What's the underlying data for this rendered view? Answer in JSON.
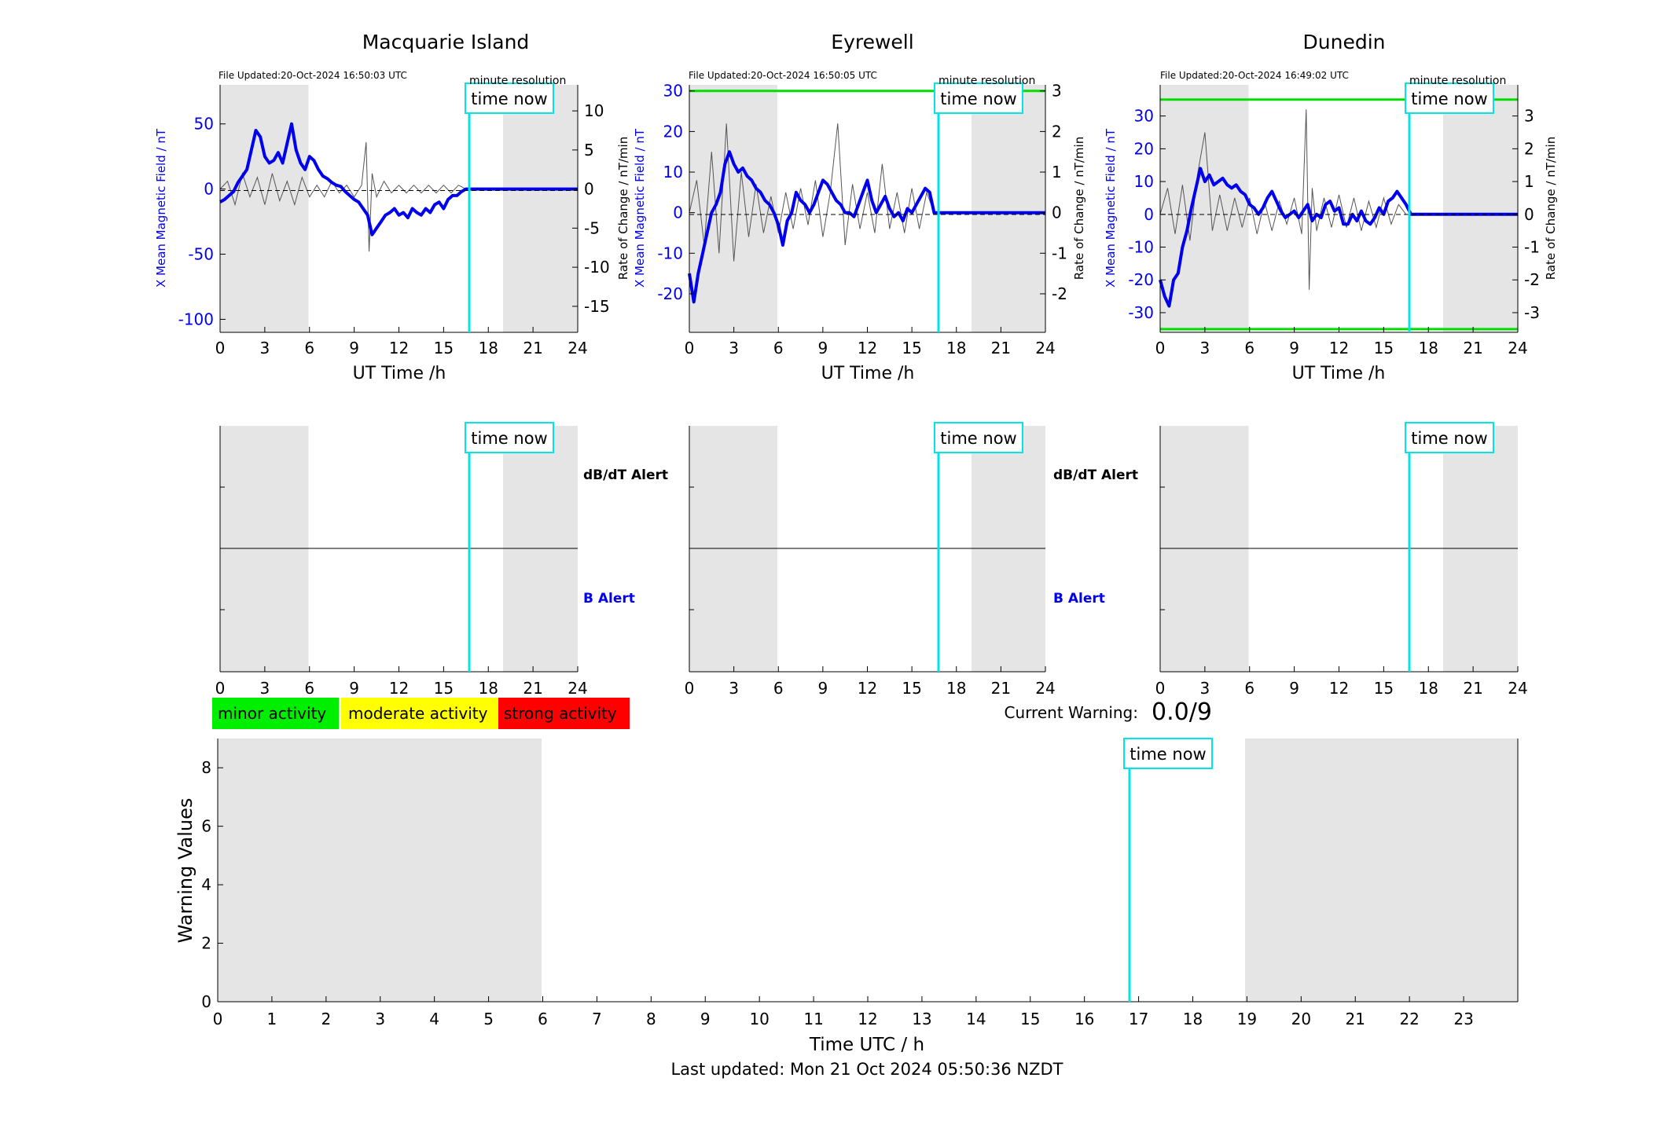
{
  "stations": [
    {
      "name": "Macquarie Island",
      "file_updated": "File Updated:20-Oct-2024 16:50:03 UTC",
      "resolution": "minute resolution",
      "xlabel": "UT Time /h",
      "ylabel_left": "X Mean Magnetic Field / nT",
      "ylabel_right": "Rate of Change / nT/min",
      "time_now_label": "time now",
      "dbdt_label": "dB/dT Alert",
      "b_label": "B Alert"
    },
    {
      "name": "Eyrewell",
      "file_updated": "File Updated:20-Oct-2024 16:50:05 UTC",
      "resolution": "minute resolution",
      "xlabel": "UT Time /h",
      "ylabel_left": "X Mean Magnetic Field / nT",
      "ylabel_right": "Rate of Change / nT/min",
      "time_now_label": "time now",
      "dbdt_label": "dB/dT Alert",
      "b_label": "B Alert"
    },
    {
      "name": "Dunedin",
      "file_updated": "File Updated:20-Oct-2024 16:49:02 UTC",
      "resolution": "minute resolution",
      "xlabel": "UT Time /h",
      "ylabel_left": "X Mean Magnetic Field / nT",
      "ylabel_right": "Rate of Change / nT/min",
      "time_now_label": "time now",
      "dbdt_label": "",
      "b_label": ""
    }
  ],
  "legend": {
    "minor": "minor activity",
    "moderate": "moderate activity",
    "strong": "strong activity"
  },
  "current_warning": {
    "label": "Current Warning:",
    "value": "0.0/9"
  },
  "warning_chart": {
    "ylabel": "Warning Values",
    "xlabel": "Time UTC / h",
    "time_now_label": "time now"
  },
  "footer": "Last updated: Mon 21 Oct 2024 05:50:36 NZDT",
  "colors": {
    "bx_line": "#0000ee",
    "rate_line": "#555555",
    "time_now": "#00e5e5",
    "shade": "#e5e5e5",
    "threshold": "#00dd00",
    "minor": "#00ee00",
    "moderate": "#ffff00",
    "strong": "#ff0000"
  },
  "chart_data": [
    {
      "type": "line",
      "title": "Macquarie Island",
      "xlabel": "UT Time /h",
      "ylabel": "X Mean Magnetic Field / nT",
      "y2label": "Rate of Change / nT/min",
      "xlim": [
        0,
        24
      ],
      "ylim": [
        -110,
        80
      ],
      "y2lim": [
        -18.33,
        13.33
      ],
      "xticks": [
        0,
        3,
        6,
        9,
        12,
        15,
        18,
        21,
        24
      ],
      "yticks": [
        -100,
        -50,
        0,
        50
      ],
      "y2ticks": [
        -15,
        -10,
        -5,
        0,
        5,
        10
      ],
      "time_now": 16.83,
      "shaded_ranges": [
        [
          0,
          6
        ],
        [
          19,
          24
        ]
      ],
      "series": [
        {
          "axis": "left",
          "x": [
            0,
            0.3,
            0.6,
            0.9,
            1.2,
            1.5,
            1.8,
            2.1,
            2.4,
            2.7,
            3.0,
            3.3,
            3.6,
            3.9,
            4.2,
            4.5,
            4.8,
            5.1,
            5.4,
            5.7,
            6.0,
            6.3,
            6.6,
            6.9,
            7.2,
            7.5,
            7.8,
            8.1,
            8.4,
            8.7,
            9.0,
            9.3,
            9.6,
            9.9,
            10.2,
            10.5,
            10.8,
            11.1,
            11.4,
            11.7,
            12.0,
            12.3,
            12.6,
            12.9,
            13.2,
            13.5,
            13.8,
            14.1,
            14.4,
            14.7,
            15.0,
            15.3,
            15.6,
            15.9,
            16.2,
            16.5,
            16.83,
            24
          ],
          "values": [
            -10,
            -8,
            -5,
            -2,
            5,
            10,
            15,
            30,
            45,
            40,
            25,
            20,
            22,
            28,
            20,
            35,
            50,
            30,
            20,
            15,
            25,
            22,
            15,
            10,
            8,
            5,
            3,
            2,
            -2,
            -5,
            -8,
            -10,
            -15,
            -20,
            -35,
            -30,
            -25,
            -20,
            -18,
            -15,
            -20,
            -18,
            -22,
            -15,
            -18,
            -20,
            -15,
            -18,
            -12,
            -10,
            -15,
            -8,
            -5,
            -5,
            -2,
            0,
            0,
            0
          ]
        },
        {
          "axis": "right",
          "x": [
            0,
            0.5,
            1.0,
            1.5,
            2.0,
            2.5,
            3.0,
            3.5,
            4.0,
            4.5,
            5.0,
            5.5,
            6.0,
            6.5,
            7.0,
            7.5,
            8.0,
            8.5,
            9.0,
            9.5,
            9.8,
            10.0,
            10.2,
            10.5,
            11.0,
            11.5,
            12.0,
            12.5,
            13.0,
            13.5,
            14.0,
            14.5,
            15.0,
            15.5,
            16.0,
            16.5
          ],
          "values": [
            0,
            1,
            -2,
            2,
            -1,
            1.5,
            -2,
            2,
            -1.5,
            1,
            -2,
            1.5,
            -1,
            0.5,
            -1,
            1,
            -0.5,
            0.5,
            -1,
            0.5,
            6,
            -8,
            2,
            -1,
            1,
            -0.5,
            0.5,
            -0.5,
            0.5,
            -0.5,
            0.5,
            -0.5,
            0.5,
            -0.5,
            0.5,
            0
          ]
        }
      ]
    },
    {
      "type": "line",
      "title": "Eyrewell",
      "xlabel": "UT Time /h",
      "ylabel": "X Mean Magnetic Field / nT",
      "y2label": "Rate of Change / nT/min",
      "xlim": [
        0,
        24
      ],
      "ylim": [
        -29.5,
        31.5
      ],
      "y2lim": [
        -2.95,
        3.15
      ],
      "xticks": [
        0,
        3,
        6,
        9,
        12,
        15,
        18,
        21,
        24
      ],
      "yticks": [
        -20,
        -10,
        0,
        10,
        20,
        30
      ],
      "y2ticks": [
        -2,
        -1,
        0,
        1,
        2,
        3
      ],
      "time_now": 16.83,
      "shaded_ranges": [
        [
          0,
          6
        ],
        [
          19,
          24
        ]
      ],
      "threshold_levels": [
        30
      ],
      "series": [
        {
          "axis": "left",
          "x": [
            0,
            0.3,
            0.6,
            0.9,
            1.2,
            1.5,
            1.8,
            2.1,
            2.4,
            2.7,
            3.0,
            3.3,
            3.6,
            3.9,
            4.2,
            4.5,
            4.8,
            5.1,
            5.4,
            5.7,
            6.0,
            6.3,
            6.6,
            6.9,
            7.2,
            7.5,
            7.8,
            8.1,
            8.4,
            8.7,
            9.0,
            9.3,
            9.6,
            9.9,
            10.2,
            10.5,
            10.8,
            11.1,
            11.4,
            11.7,
            12.0,
            12.3,
            12.6,
            12.9,
            13.2,
            13.5,
            13.8,
            14.1,
            14.4,
            14.7,
            15.0,
            15.3,
            15.6,
            15.9,
            16.2,
            16.5,
            16.83,
            24
          ],
          "values": [
            -15,
            -22,
            -15,
            -10,
            -5,
            0,
            2,
            5,
            12,
            15,
            12,
            10,
            11,
            9,
            8,
            6,
            5,
            3,
            2,
            0,
            -3,
            -8,
            -2,
            0,
            5,
            3,
            2,
            0,
            2,
            5,
            8,
            7,
            5,
            3,
            2,
            0,
            0,
            -1,
            2,
            5,
            8,
            3,
            0,
            2,
            4,
            1,
            -1,
            0,
            -2,
            1,
            0,
            2,
            4,
            6,
            5,
            0,
            0,
            0
          ]
        },
        {
          "axis": "right",
          "x": [
            0,
            0.5,
            1.0,
            1.5,
            2.0,
            2.5,
            3.0,
            3.5,
            4.0,
            4.5,
            5.0,
            5.5,
            6.0,
            6.5,
            7.0,
            7.5,
            8.0,
            8.5,
            9.0,
            9.5,
            10.0,
            10.5,
            11.0,
            11.5,
            12.0,
            12.5,
            13.0,
            13.5,
            14.0,
            14.5,
            15.0,
            15.5,
            16.0,
            16.5
          ],
          "values": [
            0,
            0.8,
            -0.8,
            1.5,
            -1,
            2.2,
            -1.2,
            1,
            -0.6,
            0.7,
            -0.5,
            0.4,
            -0.5,
            0.5,
            -0.4,
            0.6,
            -0.3,
            0.8,
            -0.6,
            0.5,
            2.2,
            -0.8,
            0.7,
            -0.4,
            0.5,
            -0.5,
            1.2,
            -0.4,
            0.5,
            -0.5,
            0.6,
            -0.4,
            0.5,
            0
          ]
        }
      ]
    },
    {
      "type": "line",
      "title": "Dunedin",
      "xlabel": "UT Time /h",
      "ylabel": "X Mean Magnetic Field / nT",
      "y2label": "Rate of Change / nT/min",
      "xlim": [
        0,
        24
      ],
      "ylim": [
        -36,
        39.5
      ],
      "y2lim": [
        -3.6,
        3.95
      ],
      "xticks": [
        0,
        3,
        6,
        9,
        12,
        15,
        18,
        21,
        24
      ],
      "yticks": [
        -30,
        -20,
        -10,
        0,
        10,
        20,
        30
      ],
      "y2ticks": [
        -3,
        -2,
        -1,
        0,
        1,
        2,
        3
      ],
      "time_now": 16.83,
      "shaded_ranges": [
        [
          0,
          6
        ],
        [
          19,
          24
        ]
      ],
      "threshold_levels": [
        35,
        -35
      ],
      "series": [
        {
          "axis": "left",
          "x": [
            0,
            0.3,
            0.6,
            0.9,
            1.2,
            1.5,
            1.8,
            2.1,
            2.4,
            2.7,
            3.0,
            3.3,
            3.6,
            3.9,
            4.2,
            4.5,
            4.8,
            5.1,
            5.4,
            5.7,
            6.0,
            6.3,
            6.6,
            6.9,
            7.2,
            7.5,
            7.8,
            8.1,
            8.4,
            8.7,
            9.0,
            9.3,
            9.6,
            9.9,
            10.2,
            10.5,
            10.8,
            11.1,
            11.4,
            11.7,
            12.0,
            12.3,
            12.6,
            12.9,
            13.2,
            13.5,
            13.8,
            14.1,
            14.4,
            14.7,
            15.0,
            15.3,
            15.6,
            15.9,
            16.2,
            16.5,
            16.83,
            24
          ],
          "values": [
            -20,
            -25,
            -28,
            -20,
            -18,
            -10,
            -5,
            2,
            8,
            14,
            10,
            12,
            9,
            10,
            11,
            9,
            8,
            9,
            7,
            6,
            3,
            2,
            0,
            2,
            5,
            7,
            4,
            1,
            -1,
            0,
            1,
            -1,
            1,
            3,
            -2,
            0,
            -1,
            3,
            4,
            1,
            2,
            -3,
            -3,
            0,
            -2,
            1,
            -2,
            -3,
            -1,
            2,
            0,
            4,
            5,
            7,
            5,
            3,
            0,
            0
          ]
        },
        {
          "axis": "right",
          "x": [
            0,
            0.5,
            1.0,
            1.5,
            2.0,
            2.5,
            3.0,
            3.5,
            4.0,
            4.5,
            5.0,
            5.5,
            6.0,
            6.5,
            7.0,
            7.5,
            8.0,
            8.5,
            9.0,
            9.5,
            9.8,
            10.0,
            10.2,
            10.5,
            11.0,
            11.5,
            12.0,
            12.5,
            13.0,
            13.5,
            14.0,
            14.5,
            15.0,
            15.5,
            16.0,
            16.5
          ],
          "values": [
            0,
            0.8,
            -0.6,
            0.9,
            -0.8,
            1.2,
            2.5,
            -0.5,
            0.6,
            -0.5,
            0.5,
            -0.4,
            0.5,
            -0.6,
            0.4,
            -0.5,
            0.4,
            -0.3,
            0.5,
            -0.6,
            3.2,
            -2.3,
            0.8,
            -0.5,
            0.5,
            -0.4,
            0.6,
            -0.4,
            0.5,
            -0.5,
            0.4,
            -0.4,
            0.5,
            -0.3,
            0.3,
            0
          ]
        }
      ]
    },
    {
      "type": "line",
      "title": "",
      "xlabel": "Time UTC / h",
      "ylabel": "Warning Values",
      "xlim": [
        0,
        24
      ],
      "ylim": [
        0,
        9
      ],
      "xticks": [
        0,
        1,
        2,
        3,
        4,
        5,
        6,
        7,
        8,
        9,
        10,
        11,
        12,
        13,
        14,
        15,
        16,
        17,
        18,
        19,
        20,
        21,
        22,
        23
      ],
      "yticks": [
        0,
        2,
        4,
        6,
        8
      ],
      "time_now": 16.83,
      "shaded_ranges": [
        [
          0,
          6
        ],
        [
          19,
          24
        ]
      ],
      "series": []
    }
  ]
}
